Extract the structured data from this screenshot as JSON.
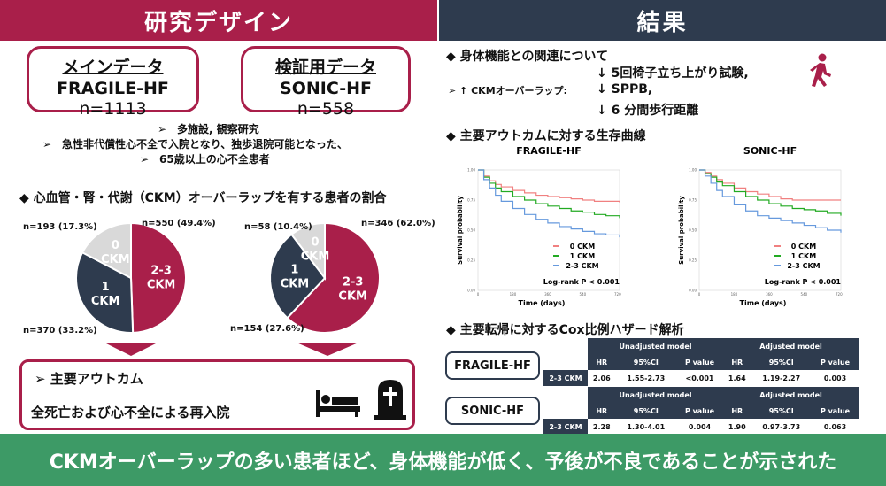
{
  "header": {
    "left_title": "研究デザイン",
    "right_title": "結果"
  },
  "design": {
    "main": {
      "label": "メインデータ",
      "name": "FRAGILE-HF",
      "n": "n=1113"
    },
    "validation": {
      "label": "検証用データ",
      "name": "SONIC-HF",
      "n": "n=558"
    },
    "bullets": [
      "➢　多施設, 観察研究",
      "➢　急性非代償性心不全で入院となり、独歩退院可能となった、",
      "➢　65歳以上の心不全患者"
    ]
  },
  "ckm_section": {
    "title": "◆ 心血管・腎・代謝（CKM）オーバーラップを有する患者の割合",
    "colors": {
      "zero": "#d9d9d9",
      "one": "#2e3b4e",
      "two_three": "#a91f4a"
    },
    "pies": [
      {
        "labels": {
          "zero": "0\nCKM",
          "one": "1\nCKM",
          "two_three": "2-3\nCKM"
        },
        "zero_text": "n=193 (17.3%)",
        "one_text": "n=370 (33.2%)",
        "two_three_text": "n=550 (49.4%)",
        "values": {
          "zero": 17.3,
          "one": 33.2,
          "two_three": 49.4
        }
      },
      {
        "labels": {
          "zero": "0\nCKM",
          "one": "1\nCKM",
          "two_three": "2-3\nCKM"
        },
        "zero_text": "n=58 (10.4%)",
        "one_text": "n=154 (27.6%)",
        "two_three_text": "n=346 (62.0%)",
        "values": {
          "zero": 10.4,
          "one": 27.6,
          "two_three": 62.0
        }
      }
    ]
  },
  "outcome": {
    "title": "➢ 主要アウトカム",
    "text": "全死亡および心不全による再入院"
  },
  "results": {
    "physical": {
      "title": "◆ 身体機能との関連について",
      "prefix": "➢ ↑ CKMオーバーラップ:",
      "items": [
        "↓ 5回椅子立ち上がり試験,",
        "↓ SPPB,",
        "↓ 6 分間歩行距離"
      ]
    },
    "survival_title": "◆ 主要アウトカムに対する生存曲線",
    "cox_title": "◆ 主要転帰に対するCox比例ハザード解析"
  },
  "chart_data": [
    {
      "type": "line",
      "title": "FRAGILE-HF",
      "xlabel": "Time (days)",
      "ylabel": "Survival probability",
      "xlim": [
        0,
        730
      ],
      "ylim": [
        0,
        1.0
      ],
      "x_ticks": [
        "0",
        "180",
        "360",
        "540",
        "720"
      ],
      "y_ticks": [
        "0.00",
        "0.25",
        "0.50",
        "0.75",
        "1.00"
      ],
      "annotation": "Log-rank P < 0.001",
      "legend_position": "bottom-right",
      "series": [
        {
          "name": "0 CKM",
          "color": "#f08080",
          "x": [
            0,
            30,
            60,
            90,
            120,
            180,
            240,
            300,
            360,
            420,
            480,
            540,
            600,
            660,
            730
          ],
          "y": [
            1.0,
            0.95,
            0.91,
            0.88,
            0.86,
            0.83,
            0.81,
            0.79,
            0.78,
            0.77,
            0.76,
            0.75,
            0.74,
            0.74,
            0.73
          ]
        },
        {
          "name": "1 CKM",
          "color": "#22aa22",
          "x": [
            0,
            30,
            60,
            90,
            120,
            180,
            240,
            300,
            360,
            420,
            480,
            540,
            600,
            660,
            730
          ],
          "y": [
            1.0,
            0.94,
            0.89,
            0.85,
            0.82,
            0.78,
            0.75,
            0.72,
            0.7,
            0.68,
            0.66,
            0.65,
            0.63,
            0.62,
            0.6
          ]
        },
        {
          "name": "2-3 CKM",
          "color": "#6699dd",
          "x": [
            0,
            30,
            60,
            90,
            120,
            180,
            240,
            300,
            360,
            420,
            480,
            540,
            600,
            660,
            730
          ],
          "y": [
            1.0,
            0.92,
            0.85,
            0.79,
            0.74,
            0.68,
            0.63,
            0.59,
            0.56,
            0.53,
            0.51,
            0.49,
            0.47,
            0.46,
            0.44
          ]
        }
      ]
    },
    {
      "type": "line",
      "title": "SONIC-HF",
      "xlabel": "Time (days)",
      "ylabel": "Survival probability",
      "xlim": [
        0,
        730
      ],
      "ylim": [
        0,
        1.0
      ],
      "x_ticks": [
        "0",
        "180",
        "360",
        "540",
        "720"
      ],
      "y_ticks": [
        "0.00",
        "0.25",
        "0.50",
        "0.75",
        "1.00"
      ],
      "annotation": "Log-rank P < 0.001",
      "legend_position": "bottom-right",
      "series": [
        {
          "name": "0 CKM",
          "color": "#f08080",
          "x": [
            0,
            30,
            60,
            90,
            120,
            180,
            240,
            300,
            360,
            420,
            480,
            540,
            600,
            660,
            730
          ],
          "y": [
            1.0,
            0.98,
            0.95,
            0.92,
            0.89,
            0.85,
            0.82,
            0.8,
            0.78,
            0.76,
            0.75,
            0.75,
            0.75,
            0.75,
            0.75
          ]
        },
        {
          "name": "1 CKM",
          "color": "#22aa22",
          "x": [
            0,
            30,
            60,
            90,
            120,
            180,
            240,
            300,
            360,
            420,
            480,
            540,
            600,
            660,
            730
          ],
          "y": [
            1.0,
            0.97,
            0.94,
            0.9,
            0.87,
            0.82,
            0.78,
            0.75,
            0.72,
            0.7,
            0.68,
            0.67,
            0.66,
            0.64,
            0.62
          ]
        },
        {
          "name": "2-3 CKM",
          "color": "#6699dd",
          "x": [
            0,
            30,
            60,
            90,
            120,
            180,
            240,
            300,
            360,
            420,
            480,
            540,
            600,
            660,
            730
          ],
          "y": [
            1.0,
            0.95,
            0.89,
            0.83,
            0.78,
            0.71,
            0.66,
            0.62,
            0.6,
            0.58,
            0.56,
            0.54,
            0.52,
            0.5,
            0.48
          ]
        }
      ]
    }
  ],
  "cox": {
    "unadjusted_header": "Unadjusted model",
    "adjusted_header": "Adjusted model",
    "columns": [
      "HR",
      "95%CI",
      "P value",
      "HR",
      "95%CI",
      "P value"
    ],
    "rows": [
      {
        "cohort": "FRAGILE-HF",
        "row_label": "2-3 CKM",
        "values": [
          "2.06",
          "1.55-2.73",
          "<0.001",
          "1.64",
          "1.19-2.27",
          "0.003"
        ]
      },
      {
        "cohort": "SONIC-HF",
        "row_label": "2-3 CKM",
        "values": [
          "2.28",
          "1.30-4.01",
          "0.004",
          "1.90",
          "0.97-3.73",
          "0.063"
        ]
      }
    ]
  },
  "icons": {
    "walk": "walking-person-icon",
    "bed": "bed-icon",
    "grave": "gravestone-cross-icon"
  },
  "footer": "CKMオーバーラップの多い患者ほど、身体機能が低く、予後が不良であることが示された"
}
